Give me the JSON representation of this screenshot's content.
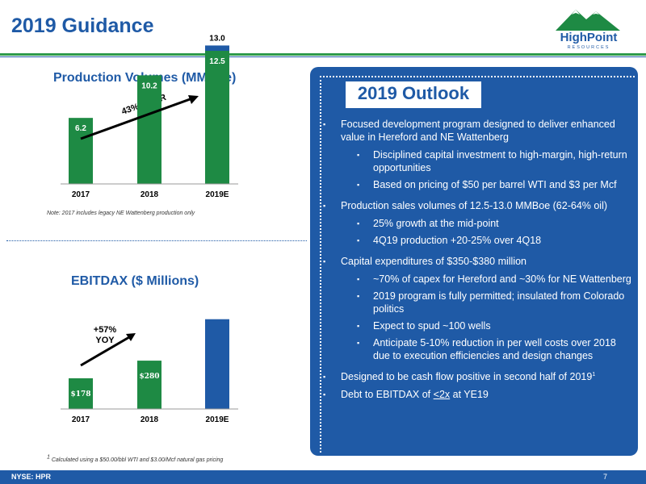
{
  "header": {
    "title": "2019 Guidance",
    "logo_name": "HighPoint",
    "logo_sub": "RESOURCES"
  },
  "production": {
    "title": "Production Volumes (MMBoe)",
    "cagr_label": "43% CAGR",
    "note": "Note: 2017 includes legacy NE Wattenberg production only"
  },
  "ebitdax": {
    "title": "EBITDAX ($ Millions)",
    "yoy_line1": "+57%",
    "yoy_line2": "YOY"
  },
  "chart_data": [
    {
      "type": "bar",
      "title": "Production Volumes (MMBoe)",
      "categories": [
        "2017",
        "2018",
        "2019E"
      ],
      "series": [
        {
          "name": "",
          "values": [
            6.2,
            10.2,
            12.5
          ]
        }
      ],
      "range_top": {
        "2019E": 13.0
      },
      "labels": [
        "6.2",
        "10.2",
        "12.5",
        "13.0"
      ],
      "colors": {
        "bar": "#1e8a44",
        "range": "#1f5aa6"
      },
      "ylim": [
        0,
        14
      ]
    },
    {
      "type": "bar",
      "title": "EBITDAX ($ Millions)",
      "categories": [
        "2017",
        "2018",
        "2019E"
      ],
      "series": [
        {
          "name": "",
          "values": [
            178,
            280,
            520
          ]
        }
      ],
      "labels": [
        "$178",
        "$280",
        ""
      ],
      "colors": {
        "2017": "#1e8a44",
        "2018": "#1e8a44",
        "2019E": "#1f5aa6"
      },
      "ylim": [
        0,
        560
      ]
    }
  ],
  "outlook": {
    "title": "2019 Outlook",
    "b1": "Focused development program designed to deliver enhanced value in Hereford and NE Wattenberg",
    "b1a": "Disciplined capital investment to high-margin, high-return opportunities",
    "b1b": "Based on pricing of $50 per barrel WTI and $3 per Mcf",
    "b2": "Production sales volumes of 12.5-13.0 MMBoe (62-64% oil)",
    "b2a": "25% growth at the mid-point",
    "b2b": "4Q19 production +20-25% over 4Q18",
    "b3": "Capital expenditures of $350-$380 million",
    "b3a": "~70% of capex for Hereford and ~30% for NE Wattenberg",
    "b3b": "2019 program is fully permitted; insulated from Colorado politics",
    "b3c": "Expect to spud ~100 wells",
    "b3d": "Anticipate 5-10% reduction in per well costs over 2018 due to execution efficiencies and design changes",
    "b4": "Designed to be cash flow positive in second half of 2019",
    "b4_sup": "1",
    "b5_pre": "Debt to EBITDAX of ",
    "b5_u": "<2x",
    "b5_post": " at YE19"
  },
  "footnote": {
    "sup": "1",
    "text": "Calculated using a $50.00/bbl WTI and $3.00/Mcf natural gas pricing"
  },
  "footer": {
    "ticker": "NYSE: HPR",
    "page": "7"
  }
}
